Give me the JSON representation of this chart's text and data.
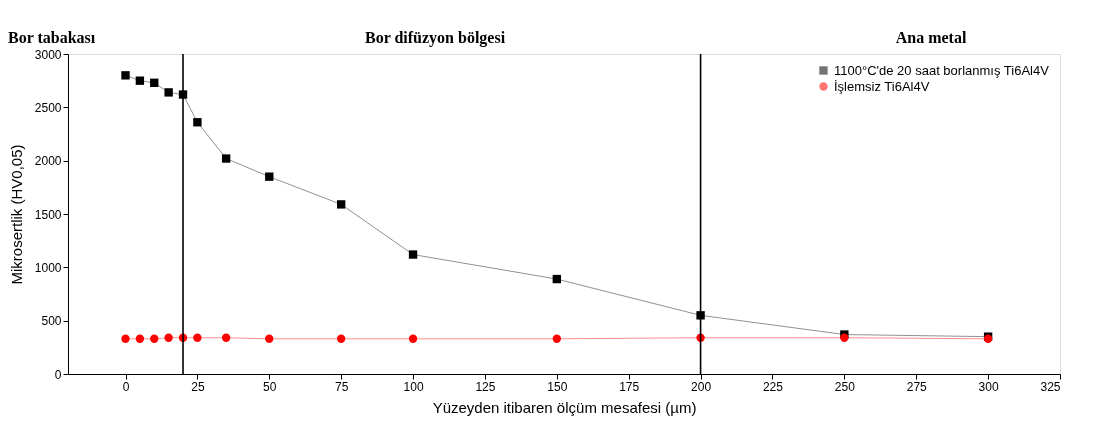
{
  "chart_data": {
    "type": "line",
    "xlabel": "Yüzeyden itibaren ölçüm mesafesi (µm)",
    "ylabel": "Mikrosertlik (HV0,05)",
    "annotations": [
      "Bor tabakası",
      "Bor difüzyon bölgesi",
      "Ana metal"
    ],
    "xlim": [
      -20,
      325
    ],
    "xticks": [
      0,
      25,
      50,
      75,
      100,
      125,
      150,
      175,
      200,
      225,
      250,
      275,
      300,
      325
    ],
    "ylim": [
      0,
      3000
    ],
    "yticks": [
      0,
      500,
      1000,
      1500,
      2000,
      2500,
      3000
    ],
    "grid": false,
    "legend": "top right",
    "line_style": "solid",
    "ref_lines": [
      {
        "axis": "x",
        "value": 20,
        "color": "#000000"
      },
      {
        "axis": "x",
        "value": 200,
        "color": "#000000"
      }
    ],
    "series": [
      {
        "name": "1100°C'de 20 saat borlanmış Ti6Al4V",
        "color": "#000000",
        "marker": "square",
        "x": [
          0,
          5,
          10,
          15,
          20,
          25,
          35,
          50,
          75,
          100,
          150,
          200,
          250,
          300
        ],
        "values": [
          2800,
          2750,
          2730,
          2640,
          2620,
          2360,
          2020,
          1850,
          1590,
          1120,
          890,
          550,
          370,
          350
        ]
      },
      {
        "name": "İşlemsiz Ti6Al4V",
        "color": "#ff0000",
        "marker": "circle",
        "x": [
          0,
          5,
          10,
          15,
          20,
          25,
          35,
          50,
          75,
          100,
          150,
          200,
          250,
          300
        ],
        "values": [
          330,
          330,
          330,
          340,
          340,
          340,
          340,
          330,
          330,
          330,
          330,
          340,
          340,
          330
        ]
      }
    ]
  }
}
